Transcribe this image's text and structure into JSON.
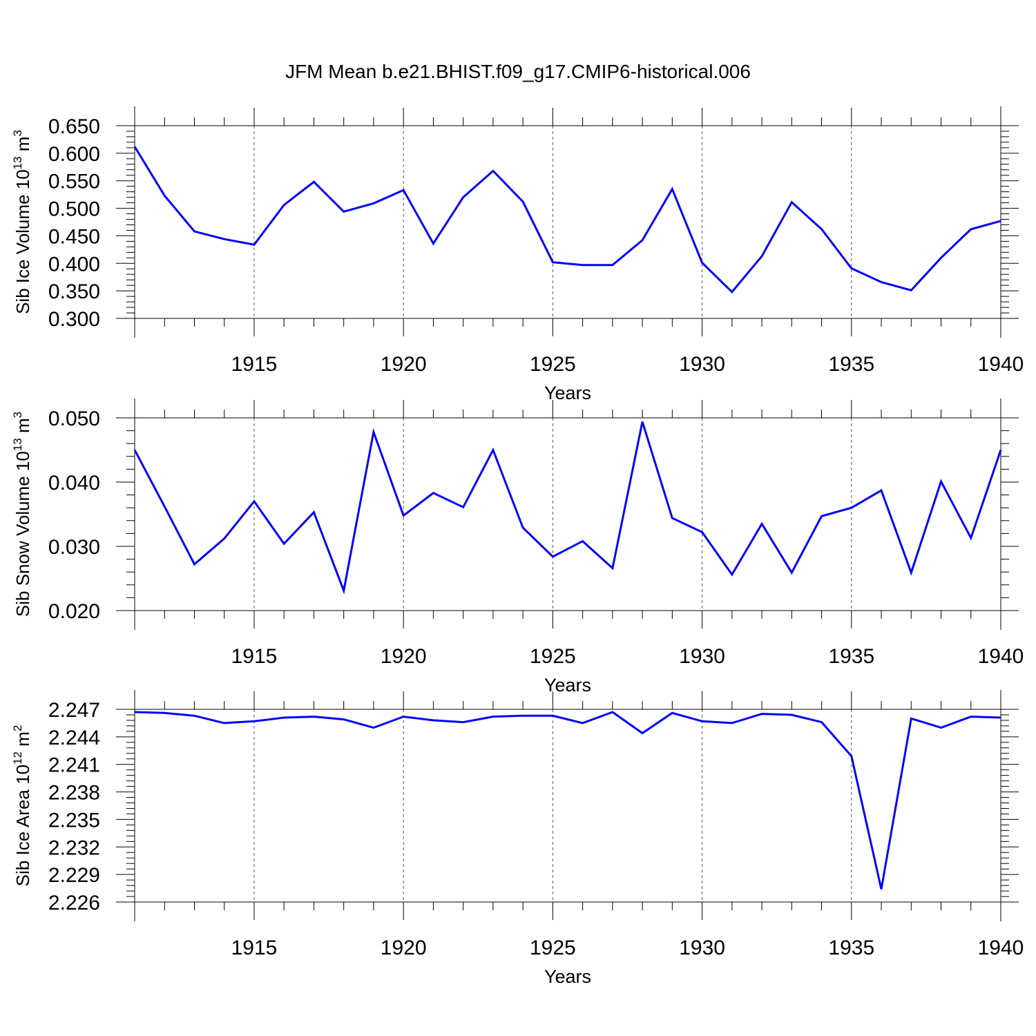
{
  "title": "JFM Mean b.e21.BHIST.f09_g17.CMIP6-historical.006",
  "colors": {
    "line": "#0000ff",
    "axis": "#000000",
    "grid": "#555555"
  },
  "chart_data": [
    {
      "type": "line",
      "xlabel": "Years",
      "ylabel_main": "Sib Ice Volume 10",
      "ylabel_sup": "13",
      "ylabel_unit": " m",
      "ylabel_unit_sup": "3",
      "xlim": [
        1911,
        1940
      ],
      "ylim": [
        0.3,
        0.65
      ],
      "yticks": [
        "0.300",
        "0.350",
        "0.400",
        "0.450",
        "0.500",
        "0.550",
        "0.600",
        "0.650"
      ],
      "xticks": [
        "1915",
        "1920",
        "1925",
        "1930",
        "1935",
        "1940"
      ],
      "grid_x": [
        1915,
        1920,
        1925,
        1930,
        1935
      ],
      "series": [
        {
          "x": [
            1911,
            1912,
            1913,
            1914,
            1915,
            1916,
            1917,
            1918,
            1919,
            1920,
            1921,
            1922,
            1923,
            1924,
            1925,
            1926,
            1927,
            1928,
            1929,
            1930,
            1931,
            1932,
            1933,
            1934,
            1935,
            1936,
            1937,
            1938,
            1939,
            1940
          ],
          "values": [
            0.612,
            0.523,
            0.458,
            0.444,
            0.434,
            0.506,
            0.548,
            0.494,
            0.509,
            0.533,
            0.436,
            0.52,
            0.568,
            0.512,
            0.402,
            0.397,
            0.397,
            0.442,
            0.535,
            0.401,
            0.348,
            0.413,
            0.511,
            0.462,
            0.391,
            0.366,
            0.351,
            0.41,
            0.462,
            0.477
          ]
        }
      ]
    },
    {
      "type": "line",
      "xlabel": "Years",
      "ylabel_main": "Sib Snow Volume 10",
      "ylabel_sup": "13",
      "ylabel_unit": " m",
      "ylabel_unit_sup": "3",
      "xlim": [
        1911,
        1940
      ],
      "ylim": [
        0.02,
        0.05
      ],
      "yticks": [
        "0.020",
        "0.030",
        "0.040",
        "0.050"
      ],
      "xticks": [
        "1915",
        "1920",
        "1925",
        "1930",
        "1935",
        "1940"
      ],
      "grid_x": [
        1915,
        1920,
        1925,
        1930,
        1935
      ],
      "series": [
        {
          "x": [
            1911,
            1912,
            1913,
            1914,
            1915,
            1916,
            1917,
            1918,
            1919,
            1920,
            1921,
            1922,
            1923,
            1924,
            1925,
            1926,
            1927,
            1928,
            1929,
            1930,
            1931,
            1932,
            1933,
            1934,
            1935,
            1936,
            1937,
            1938,
            1939,
            1940
          ],
          "values": [
            0.045,
            0.0362,
            0.0272,
            0.0312,
            0.037,
            0.0304,
            0.0353,
            0.0231,
            0.0478,
            0.0348,
            0.0383,
            0.0361,
            0.045,
            0.0329,
            0.0284,
            0.0308,
            0.0266,
            0.0494,
            0.0344,
            0.0322,
            0.0256,
            0.0335,
            0.0259,
            0.0347,
            0.036,
            0.0387,
            0.0259,
            0.0401,
            0.0313,
            0.045
          ]
        }
      ]
    },
    {
      "type": "line",
      "xlabel": "Years",
      "ylabel_main": "Sib Ice Area 10",
      "ylabel_sup": "12",
      "ylabel_unit": " m",
      "ylabel_unit_sup": "2",
      "xlim": [
        1911,
        1940
      ],
      "ylim": [
        2.226,
        2.247
      ],
      "yticks": [
        "2.226",
        "2.229",
        "2.232",
        "2.235",
        "2.238",
        "2.241",
        "2.244",
        "2.247"
      ],
      "xticks": [
        "1915",
        "1920",
        "1925",
        "1930",
        "1935",
        "1940"
      ],
      "grid_x": [
        1915,
        1920,
        1925,
        1930,
        1935
      ],
      "series": [
        {
          "x": [
            1911,
            1912,
            1913,
            1914,
            1915,
            1916,
            1917,
            1918,
            1919,
            1920,
            1921,
            1922,
            1923,
            1924,
            1925,
            1926,
            1927,
            1928,
            1929,
            1930,
            1931,
            1932,
            1933,
            1934,
            1935,
            1936,
            1937,
            1938,
            1939,
            1940
          ],
          "values": [
            2.2467,
            2.2466,
            2.2463,
            2.2455,
            2.2457,
            2.2461,
            2.2462,
            2.2459,
            2.245,
            2.2462,
            2.2458,
            2.2456,
            2.2462,
            2.2463,
            2.2463,
            2.2455,
            2.2467,
            2.2444,
            2.2466,
            2.2457,
            2.2455,
            2.2465,
            2.2464,
            2.2456,
            2.2419,
            2.2274,
            2.246,
            2.245,
            2.2462,
            2.2461
          ]
        }
      ]
    }
  ]
}
